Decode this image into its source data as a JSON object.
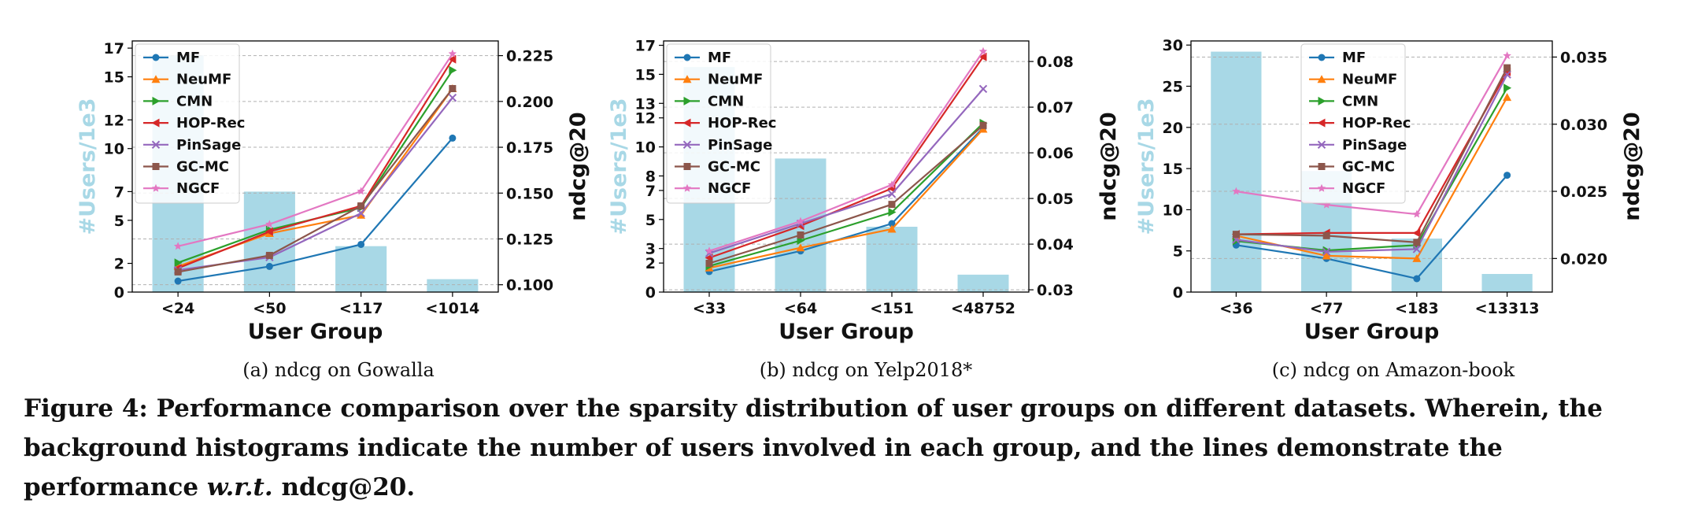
{
  "figure": {
    "caption_prefix": "Figure 4: Performance comparison over the sparsity distribution of user groups on different datasets. Wherein, the background histograms indicate the number of users involved in each group, and the lines demonstrate the performance ",
    "caption_italic": "w.r.t.",
    "caption_suffix": " ndcg@20."
  },
  "colors": {
    "bar": "#a8d8e6",
    "left_axis_label": "#a8d8e6",
    "MF": "#1f77b4",
    "NeuMF": "#ff7f0e",
    "CMN": "#2ca02c",
    "HOP-Rec": "#d62728",
    "PinSage": "#9467bd",
    "GC-MC": "#8c564b",
    "NGCF": "#e377c2"
  },
  "chart_data": [
    {
      "type": "bar+line",
      "subcaption": "(a)  ndcg on Gowalla",
      "xlabel": "User Group",
      "ylabel_left": "#Users/1e3",
      "ylabel_right": "ndcg@20",
      "categories": [
        "<24",
        "<50",
        "<117",
        "<1014"
      ],
      "bars": [
        16.5,
        7.0,
        3.2,
        0.9
      ],
      "ylim_left": [
        0,
        17.5
      ],
      "yticks_left": [
        0,
        2,
        5,
        7,
        10,
        12,
        15,
        17
      ],
      "ylim_right": [
        0.096,
        0.233
      ],
      "yticks_right": [
        "0.100",
        "0.125",
        "0.150",
        "0.175",
        "0.200",
        "0.225"
      ],
      "grid": true,
      "legend_position": "top-left",
      "series": [
        {
          "name": "MF",
          "marker": "circle",
          "values": [
            0.102,
            0.11,
            0.122,
            0.18
          ]
        },
        {
          "name": "NeuMF",
          "marker": "triangle-up",
          "values": [
            0.11,
            0.128,
            0.138,
            0.207
          ]
        },
        {
          "name": "CMN",
          "marker": "triangle-right",
          "values": [
            0.112,
            0.13,
            0.142,
            0.217
          ]
        },
        {
          "name": "HOP-Rec",
          "marker": "triangle-left",
          "values": [
            0.109,
            0.129,
            0.143,
            0.223
          ]
        },
        {
          "name": "PinSage",
          "marker": "x",
          "values": [
            0.108,
            0.115,
            0.139,
            0.202
          ]
        },
        {
          "name": "GC-MC",
          "marker": "square",
          "values": [
            0.107,
            0.116,
            0.143,
            0.207
          ]
        },
        {
          "name": "NGCF",
          "marker": "star",
          "values": [
            0.121,
            0.133,
            0.151,
            0.226
          ]
        }
      ]
    },
    {
      "type": "bar+line",
      "subcaption": "(b)  ndcg on Yelp2018*",
      "xlabel": "User Group",
      "ylabel_left": "#Users/1e3",
      "ylabel_right": "ndcg@20",
      "categories": [
        "<33",
        "<64",
        "<151",
        "<48752"
      ],
      "bars": [
        15.5,
        9.2,
        4.5,
        1.2
      ],
      "ylim_left": [
        0,
        17.3
      ],
      "yticks_left": [
        0,
        2,
        3,
        5,
        7,
        8,
        10,
        12,
        13,
        15,
        17
      ],
      "ylim_right": [
        0.0295,
        0.0845
      ],
      "yticks_right": [
        "0.03",
        "0.04",
        "0.05",
        "0.06",
        "0.07",
        "0.08"
      ],
      "grid": true,
      "legend_position": "top-left",
      "series": [
        {
          "name": "MF",
          "marker": "circle",
          "values": [
            0.034,
            0.0385,
            0.0445,
            0.0655
          ]
        },
        {
          "name": "NeuMF",
          "marker": "triangle-up",
          "values": [
            0.0348,
            0.0392,
            0.0433,
            0.0652
          ]
        },
        {
          "name": "CMN",
          "marker": "triangle-right",
          "values": [
            0.0352,
            0.0408,
            0.047,
            0.0665
          ]
        },
        {
          "name": "HOP-Rec",
          "marker": "triangle-left",
          "values": [
            0.037,
            0.044,
            0.0522,
            0.081
          ]
        },
        {
          "name": "PinSage",
          "marker": "x",
          "values": [
            0.038,
            0.0445,
            0.051,
            0.074
          ]
        },
        {
          "name": "GC-MC",
          "marker": "square",
          "values": [
            0.0358,
            0.042,
            0.0487,
            0.066
          ]
        },
        {
          "name": "NGCF",
          "marker": "star",
          "values": [
            0.0385,
            0.045,
            0.053,
            0.0822
          ]
        }
      ]
    },
    {
      "type": "bar+line",
      "subcaption": "(c)  ndcg on Amazon-book",
      "xlabel": "User Group",
      "ylabel_left": "#Users/1e3",
      "ylabel_right": "ndcg@20",
      "categories": [
        "<36",
        "<77",
        "<183",
        "<13313"
      ],
      "bars": [
        29.2,
        14.7,
        6.5,
        2.2
      ],
      "ylim_left": [
        0,
        30.5
      ],
      "yticks_left": [
        0,
        5,
        10,
        15,
        20,
        25,
        30
      ],
      "ylim_right": [
        0.0175,
        0.0362
      ],
      "yticks_right": [
        "0.020",
        "0.025",
        "0.030",
        "0.035"
      ],
      "grid": true,
      "legend_position": "top-center",
      "series": [
        {
          "name": "MF",
          "marker": "circle",
          "values": [
            0.021,
            0.02,
            0.0185,
            0.0262
          ]
        },
        {
          "name": "NeuMF",
          "marker": "triangle-up",
          "values": [
            0.0217,
            0.0202,
            0.02,
            0.032
          ]
        },
        {
          "name": "CMN",
          "marker": "triangle-right",
          "values": [
            0.0213,
            0.0206,
            0.021,
            0.0327
          ]
        },
        {
          "name": "HOP-Rec",
          "marker": "triangle-left",
          "values": [
            0.0218,
            0.0219,
            0.0219,
            0.0339
          ]
        },
        {
          "name": "PinSage",
          "marker": "x",
          "values": [
            0.0214,
            0.0205,
            0.0207,
            0.0337
          ]
        },
        {
          "name": "GC-MC",
          "marker": "square",
          "values": [
            0.0218,
            0.0217,
            0.0212,
            0.0342
          ]
        },
        {
          "name": "NGCF",
          "marker": "star",
          "values": [
            0.025,
            0.024,
            0.0233,
            0.0351
          ]
        }
      ]
    }
  ]
}
